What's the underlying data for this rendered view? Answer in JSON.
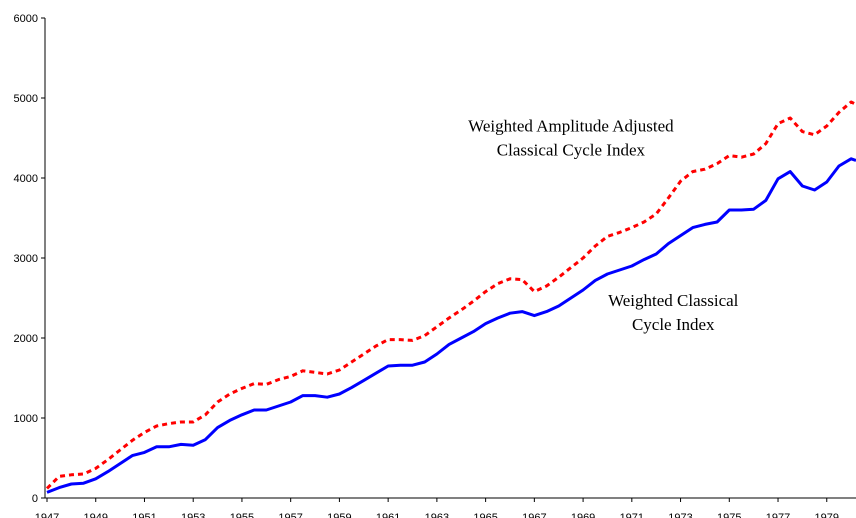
{
  "chart_data": {
    "type": "line",
    "x": [
      1947,
      1947.5,
      1948,
      1948.5,
      1949,
      1949.5,
      1950,
      1950.5,
      1951,
      1951.5,
      1952,
      1952.5,
      1953,
      1953.5,
      1954,
      1954.5,
      1955,
      1955.5,
      1956,
      1956.5,
      1957,
      1957.5,
      1958,
      1958.5,
      1959,
      1959.5,
      1960,
      1960.5,
      1961,
      1961.5,
      1962,
      1962.5,
      1963,
      1963.5,
      1964,
      1964.5,
      1965,
      1965.5,
      1966,
      1966.5,
      1967,
      1967.5,
      1968,
      1968.5,
      1969,
      1969.5,
      1970,
      1970.5,
      1971,
      1971.5,
      1972,
      1972.5,
      1973,
      1973.5,
      1974,
      1974.5,
      1975,
      1975.5,
      1976,
      1976.5,
      1977,
      1977.5,
      1978,
      1978.5,
      1979,
      1979.5,
      1980,
      1980.2
    ],
    "series": [
      {
        "color": "#0000ff",
        "dashed": false,
        "values": [
          70,
          130,
          175,
          185,
          240,
          330,
          430,
          530,
          570,
          640,
          640,
          670,
          660,
          730,
          880,
          970,
          1040,
          1100,
          1100,
          1150,
          1200,
          1280,
          1280,
          1260,
          1300,
          1380,
          1470,
          1560,
          1650,
          1660,
          1660,
          1700,
          1800,
          1920,
          2000,
          2080,
          2180,
          2250,
          2310,
          2330,
          2280,
          2330,
          2400,
          2500,
          2600,
          2720,
          2800,
          2850,
          2900,
          2980,
          3050,
          3180,
          3280,
          3380,
          3420,
          3450,
          3600,
          3600,
          3610,
          3720,
          3990,
          4080,
          3900,
          3850,
          3950,
          4150,
          4240,
          4220
        ]
      },
      {
        "color": "#ff0000",
        "dashed": true,
        "values": [
          120,
          270,
          290,
          300,
          370,
          480,
          600,
          720,
          820,
          900,
          930,
          950,
          950,
          1040,
          1200,
          1300,
          1370,
          1430,
          1420,
          1480,
          1520,
          1590,
          1570,
          1550,
          1600,
          1700,
          1800,
          1900,
          1980,
          1980,
          1970,
          2030,
          2140,
          2250,
          2350,
          2460,
          2580,
          2680,
          2740,
          2730,
          2580,
          2650,
          2760,
          2880,
          3000,
          3150,
          3270,
          3320,
          3380,
          3450,
          3550,
          3750,
          3960,
          4080,
          4110,
          4180,
          4280,
          4260,
          4300,
          4430,
          4680,
          4750,
          4580,
          4540,
          4650,
          4820,
          4950,
          4920
        ]
      }
    ],
    "annotations": [
      {
        "lines": [
          "Weighted Amplitude Adjusted",
          "Classical Cycle Index"
        ],
        "x": 1968.5,
        "y": 4580
      },
      {
        "lines": [
          "Weighted Classical",
          "Cycle Index"
        ],
        "x": 1972.7,
        "y": 2400
      }
    ],
    "xlim": [
      1947,
      1980.2
    ],
    "xticks": [
      1947,
      1949,
      1951,
      1953,
      1955,
      1957,
      1959,
      1961,
      1963,
      1965,
      1967,
      1969,
      1971,
      1973,
      1975,
      1977,
      1979
    ],
    "ylim": [
      0,
      6000
    ],
    "yticks": [
      0,
      1000,
      2000,
      3000,
      4000,
      5000,
      6000
    ],
    "grid": false
  }
}
